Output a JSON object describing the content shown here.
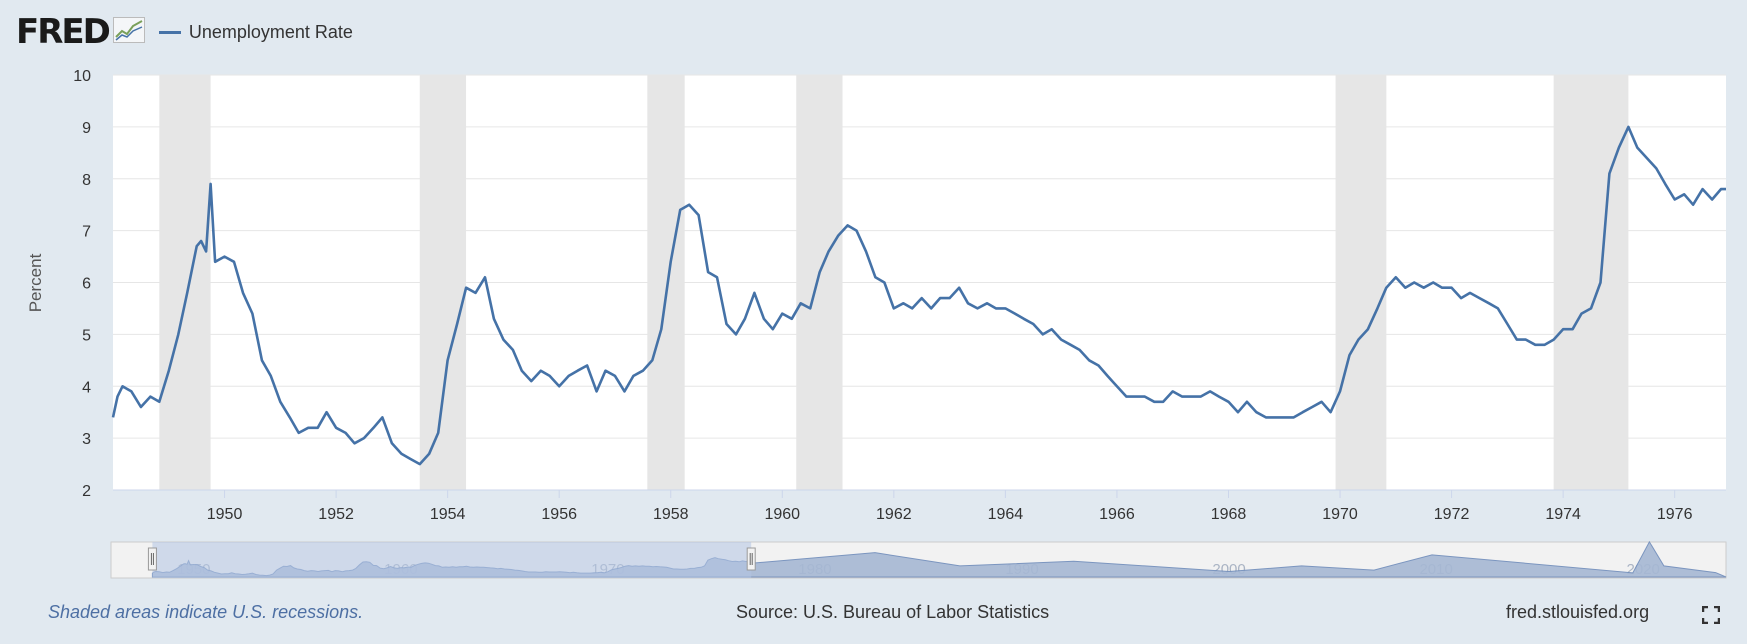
{
  "header": {
    "logo": "FRED",
    "legend_label": "Unemployment Rate"
  },
  "footer": {
    "recession_note": "Shaded areas indicate U.S. recessions.",
    "source": "Source: U.S. Bureau of Labor Statistics",
    "site": "fred.stlouisfed.org"
  },
  "icons": {
    "logo_mark": "rising-chart-icon",
    "fullscreen": "fullscreen-icon"
  },
  "colors": {
    "background": "#e1e9f0",
    "plot_background": "#ffffff",
    "series": "#4572a7",
    "recession": "#e6e6e6",
    "navigator_fill": "#b2c4e4"
  },
  "chart_data": {
    "type": "line",
    "title": "",
    "xlabel": "",
    "ylabel": "Percent",
    "xlim": [
      1948.0,
      1976.92
    ],
    "ylim": [
      2,
      10
    ],
    "yticks": [
      2,
      3,
      4,
      5,
      6,
      7,
      8,
      9,
      10
    ],
    "xticks": [
      1950,
      1952,
      1954,
      1956,
      1958,
      1960,
      1962,
      1964,
      1966,
      1968,
      1970,
      1972,
      1974,
      1976
    ],
    "grid": true,
    "legend": "top-left",
    "recessions": [
      [
        1948.83,
        1949.75
      ],
      [
        1953.5,
        1954.33
      ],
      [
        1957.58,
        1958.25
      ],
      [
        1960.25,
        1961.08
      ],
      [
        1969.92,
        1970.83
      ],
      [
        1973.83,
        1975.17
      ]
    ],
    "series": [
      {
        "name": "Unemployment Rate",
        "x": [
          1948.0,
          1948.08,
          1948.17,
          1948.33,
          1948.5,
          1948.67,
          1948.83,
          1949.0,
          1949.17,
          1949.33,
          1949.5,
          1949.58,
          1949.67,
          1949.75,
          1949.83,
          1950.0,
          1950.17,
          1950.33,
          1950.5,
          1950.67,
          1950.83,
          1951.0,
          1951.17,
          1951.33,
          1951.5,
          1951.67,
          1951.83,
          1952.0,
          1952.17,
          1952.33,
          1952.5,
          1952.67,
          1952.83,
          1953.0,
          1953.17,
          1953.33,
          1953.5,
          1953.67,
          1953.83,
          1954.0,
          1954.17,
          1954.33,
          1954.5,
          1954.67,
          1954.83,
          1955.0,
          1955.17,
          1955.33,
          1955.5,
          1955.67,
          1955.83,
          1956.0,
          1956.17,
          1956.33,
          1956.5,
          1956.67,
          1956.83,
          1957.0,
          1957.17,
          1957.33,
          1957.5,
          1957.67,
          1957.83,
          1958.0,
          1958.17,
          1958.33,
          1958.5,
          1958.67,
          1958.83,
          1959.0,
          1959.17,
          1959.33,
          1959.5,
          1959.67,
          1959.83,
          1960.0,
          1960.17,
          1960.33,
          1960.5,
          1960.67,
          1960.83,
          1961.0,
          1961.17,
          1961.33,
          1961.5,
          1961.67,
          1961.83,
          1962.0,
          1962.17,
          1962.33,
          1962.5,
          1962.67,
          1962.83,
          1963.0,
          1963.17,
          1963.33,
          1963.5,
          1963.67,
          1963.83,
          1964.0,
          1964.17,
          1964.33,
          1964.5,
          1964.67,
          1964.83,
          1965.0,
          1965.17,
          1965.33,
          1965.5,
          1965.67,
          1965.83,
          1966.0,
          1966.17,
          1966.33,
          1966.5,
          1966.67,
          1966.83,
          1967.0,
          1967.17,
          1967.33,
          1967.5,
          1967.67,
          1967.83,
          1968.0,
          1968.17,
          1968.33,
          1968.5,
          1968.67,
          1968.83,
          1969.0,
          1969.17,
          1969.33,
          1969.5,
          1969.67,
          1969.83,
          1970.0,
          1970.17,
          1970.33,
          1970.5,
          1970.67,
          1970.83,
          1971.0,
          1971.17,
          1971.33,
          1971.5,
          1971.67,
          1971.83,
          1972.0,
          1972.17,
          1972.33,
          1972.5,
          1972.67,
          1972.83,
          1973.0,
          1973.17,
          1973.33,
          1973.5,
          1973.67,
          1973.83,
          1974.0,
          1974.17,
          1974.33,
          1974.5,
          1974.67,
          1974.83,
          1975.0,
          1975.17,
          1975.33,
          1975.5,
          1975.67,
          1975.83,
          1976.0,
          1976.17,
          1976.33,
          1976.5,
          1976.67,
          1976.83,
          1976.92
        ],
        "y": [
          3.4,
          3.8,
          4.0,
          3.9,
          3.6,
          3.8,
          3.7,
          4.3,
          5.0,
          5.8,
          6.7,
          6.8,
          6.6,
          7.9,
          6.4,
          6.5,
          6.4,
          5.8,
          5.4,
          4.5,
          4.2,
          3.7,
          3.4,
          3.1,
          3.2,
          3.2,
          3.5,
          3.2,
          3.1,
          2.9,
          3.0,
          3.2,
          3.4,
          2.9,
          2.7,
          2.6,
          2.5,
          2.7,
          3.1,
          4.5,
          5.2,
          5.9,
          5.8,
          6.1,
          5.3,
          4.9,
          4.7,
          4.3,
          4.1,
          4.3,
          4.2,
          4.0,
          4.2,
          4.3,
          4.4,
          3.9,
          4.3,
          4.2,
          3.9,
          4.2,
          4.3,
          4.5,
          5.1,
          6.4,
          7.4,
          7.5,
          7.3,
          6.2,
          6.1,
          5.2,
          5.0,
          5.3,
          5.8,
          5.3,
          5.1,
          5.4,
          5.3,
          5.6,
          5.5,
          6.2,
          6.6,
          6.9,
          7.1,
          7.0,
          6.6,
          6.1,
          6.0,
          5.5,
          5.6,
          5.5,
          5.7,
          5.5,
          5.7,
          5.7,
          5.9,
          5.6,
          5.5,
          5.6,
          5.5,
          5.5,
          5.4,
          5.3,
          5.2,
          5.0,
          5.1,
          4.9,
          4.8,
          4.7,
          4.5,
          4.4,
          4.2,
          4.0,
          3.8,
          3.8,
          3.8,
          3.7,
          3.7,
          3.9,
          3.8,
          3.8,
          3.8,
          3.9,
          3.8,
          3.7,
          3.5,
          3.7,
          3.5,
          3.4,
          3.4,
          3.4,
          3.4,
          3.5,
          3.6,
          3.7,
          3.5,
          3.9,
          4.6,
          4.9,
          5.1,
          5.5,
          5.9,
          6.1,
          5.9,
          6.0,
          5.9,
          6.0,
          5.9,
          5.9,
          5.7,
          5.8,
          5.7,
          5.6,
          5.5,
          5.2,
          4.9,
          4.9,
          4.8,
          4.8,
          4.9,
          5.1,
          5.1,
          5.4,
          5.5,
          6.0,
          8.1,
          8.6,
          9.0,
          8.6,
          8.4,
          8.2,
          7.9,
          7.6,
          7.7,
          7.5,
          7.8,
          7.6,
          7.8,
          7.8
        ]
      }
    ],
    "navigator": {
      "xticks": [
        1950,
        1960,
        1970,
        1980,
        1990,
        2000,
        2010,
        2020
      ]
    }
  }
}
